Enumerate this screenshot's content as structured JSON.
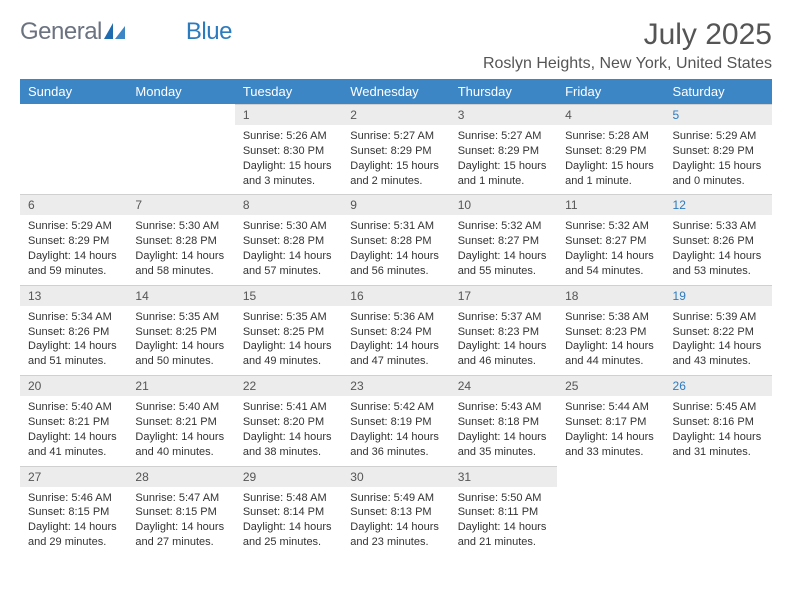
{
  "brand": {
    "part1": "General",
    "part2": "Blue"
  },
  "title": "July 2025",
  "location": "Roslyn Heights, New York, United States",
  "colors": {
    "header_bg": "#3d86c6",
    "header_text": "#ffffff",
    "daynum_bg": "#ececec",
    "text": "#333333",
    "saturday_num": "#2d7bbf",
    "brand_gray": "#6b7280",
    "brand_blue": "#2d7bbf"
  },
  "day_headers": [
    "Sunday",
    "Monday",
    "Tuesday",
    "Wednesday",
    "Thursday",
    "Friday",
    "Saturday"
  ],
  "weeks": [
    [
      {
        "n": "",
        "sunrise": "",
        "sunset": "",
        "daylight": ""
      },
      {
        "n": "",
        "sunrise": "",
        "sunset": "",
        "daylight": ""
      },
      {
        "n": "1",
        "sunrise": "Sunrise: 5:26 AM",
        "sunset": "Sunset: 8:30 PM",
        "daylight": "Daylight: 15 hours and 3 minutes."
      },
      {
        "n": "2",
        "sunrise": "Sunrise: 5:27 AM",
        "sunset": "Sunset: 8:29 PM",
        "daylight": "Daylight: 15 hours and 2 minutes."
      },
      {
        "n": "3",
        "sunrise": "Sunrise: 5:27 AM",
        "sunset": "Sunset: 8:29 PM",
        "daylight": "Daylight: 15 hours and 1 minute."
      },
      {
        "n": "4",
        "sunrise": "Sunrise: 5:28 AM",
        "sunset": "Sunset: 8:29 PM",
        "daylight": "Daylight: 15 hours and 1 minute."
      },
      {
        "n": "5",
        "sunrise": "Sunrise: 5:29 AM",
        "sunset": "Sunset: 8:29 PM",
        "daylight": "Daylight: 15 hours and 0 minutes."
      }
    ],
    [
      {
        "n": "6",
        "sunrise": "Sunrise: 5:29 AM",
        "sunset": "Sunset: 8:29 PM",
        "daylight": "Daylight: 14 hours and 59 minutes."
      },
      {
        "n": "7",
        "sunrise": "Sunrise: 5:30 AM",
        "sunset": "Sunset: 8:28 PM",
        "daylight": "Daylight: 14 hours and 58 minutes."
      },
      {
        "n": "8",
        "sunrise": "Sunrise: 5:30 AM",
        "sunset": "Sunset: 8:28 PM",
        "daylight": "Daylight: 14 hours and 57 minutes."
      },
      {
        "n": "9",
        "sunrise": "Sunrise: 5:31 AM",
        "sunset": "Sunset: 8:28 PM",
        "daylight": "Daylight: 14 hours and 56 minutes."
      },
      {
        "n": "10",
        "sunrise": "Sunrise: 5:32 AM",
        "sunset": "Sunset: 8:27 PM",
        "daylight": "Daylight: 14 hours and 55 minutes."
      },
      {
        "n": "11",
        "sunrise": "Sunrise: 5:32 AM",
        "sunset": "Sunset: 8:27 PM",
        "daylight": "Daylight: 14 hours and 54 minutes."
      },
      {
        "n": "12",
        "sunrise": "Sunrise: 5:33 AM",
        "sunset": "Sunset: 8:26 PM",
        "daylight": "Daylight: 14 hours and 53 minutes."
      }
    ],
    [
      {
        "n": "13",
        "sunrise": "Sunrise: 5:34 AM",
        "sunset": "Sunset: 8:26 PM",
        "daylight": "Daylight: 14 hours and 51 minutes."
      },
      {
        "n": "14",
        "sunrise": "Sunrise: 5:35 AM",
        "sunset": "Sunset: 8:25 PM",
        "daylight": "Daylight: 14 hours and 50 minutes."
      },
      {
        "n": "15",
        "sunrise": "Sunrise: 5:35 AM",
        "sunset": "Sunset: 8:25 PM",
        "daylight": "Daylight: 14 hours and 49 minutes."
      },
      {
        "n": "16",
        "sunrise": "Sunrise: 5:36 AM",
        "sunset": "Sunset: 8:24 PM",
        "daylight": "Daylight: 14 hours and 47 minutes."
      },
      {
        "n": "17",
        "sunrise": "Sunrise: 5:37 AM",
        "sunset": "Sunset: 8:23 PM",
        "daylight": "Daylight: 14 hours and 46 minutes."
      },
      {
        "n": "18",
        "sunrise": "Sunrise: 5:38 AM",
        "sunset": "Sunset: 8:23 PM",
        "daylight": "Daylight: 14 hours and 44 minutes."
      },
      {
        "n": "19",
        "sunrise": "Sunrise: 5:39 AM",
        "sunset": "Sunset: 8:22 PM",
        "daylight": "Daylight: 14 hours and 43 minutes."
      }
    ],
    [
      {
        "n": "20",
        "sunrise": "Sunrise: 5:40 AM",
        "sunset": "Sunset: 8:21 PM",
        "daylight": "Daylight: 14 hours and 41 minutes."
      },
      {
        "n": "21",
        "sunrise": "Sunrise: 5:40 AM",
        "sunset": "Sunset: 8:21 PM",
        "daylight": "Daylight: 14 hours and 40 minutes."
      },
      {
        "n": "22",
        "sunrise": "Sunrise: 5:41 AM",
        "sunset": "Sunset: 8:20 PM",
        "daylight": "Daylight: 14 hours and 38 minutes."
      },
      {
        "n": "23",
        "sunrise": "Sunrise: 5:42 AM",
        "sunset": "Sunset: 8:19 PM",
        "daylight": "Daylight: 14 hours and 36 minutes."
      },
      {
        "n": "24",
        "sunrise": "Sunrise: 5:43 AM",
        "sunset": "Sunset: 8:18 PM",
        "daylight": "Daylight: 14 hours and 35 minutes."
      },
      {
        "n": "25",
        "sunrise": "Sunrise: 5:44 AM",
        "sunset": "Sunset: 8:17 PM",
        "daylight": "Daylight: 14 hours and 33 minutes."
      },
      {
        "n": "26",
        "sunrise": "Sunrise: 5:45 AM",
        "sunset": "Sunset: 8:16 PM",
        "daylight": "Daylight: 14 hours and 31 minutes."
      }
    ],
    [
      {
        "n": "27",
        "sunrise": "Sunrise: 5:46 AM",
        "sunset": "Sunset: 8:15 PM",
        "daylight": "Daylight: 14 hours and 29 minutes."
      },
      {
        "n": "28",
        "sunrise": "Sunrise: 5:47 AM",
        "sunset": "Sunset: 8:15 PM",
        "daylight": "Daylight: 14 hours and 27 minutes."
      },
      {
        "n": "29",
        "sunrise": "Sunrise: 5:48 AM",
        "sunset": "Sunset: 8:14 PM",
        "daylight": "Daylight: 14 hours and 25 minutes."
      },
      {
        "n": "30",
        "sunrise": "Sunrise: 5:49 AM",
        "sunset": "Sunset: 8:13 PM",
        "daylight": "Daylight: 14 hours and 23 minutes."
      },
      {
        "n": "31",
        "sunrise": "Sunrise: 5:50 AM",
        "sunset": "Sunset: 8:11 PM",
        "daylight": "Daylight: 14 hours and 21 minutes."
      },
      {
        "n": "",
        "sunrise": "",
        "sunset": "",
        "daylight": ""
      },
      {
        "n": "",
        "sunrise": "",
        "sunset": "",
        "daylight": ""
      }
    ]
  ]
}
